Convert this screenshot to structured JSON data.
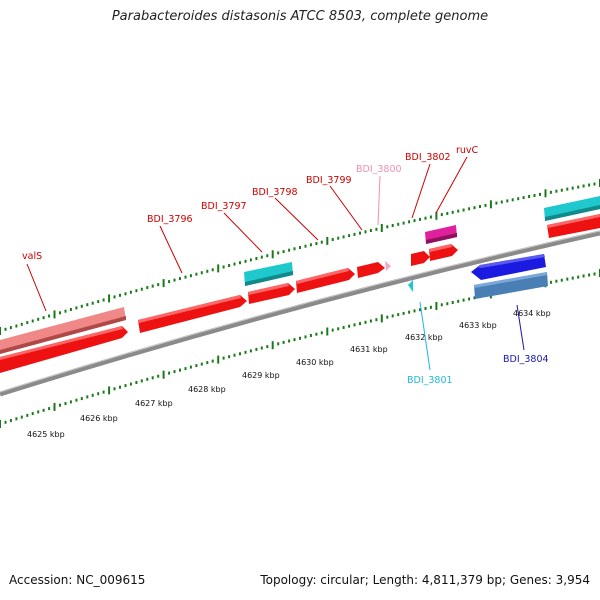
{
  "title": "Parabacteroides distasonis ATCC 8503, complete genome",
  "colors": {
    "forward_cds": "#ee1111",
    "forward_cds_top": "#ff4a4a",
    "trna": "#f08888",
    "misc": "#1ec8cc",
    "reverse_cds": "#1a1ae0",
    "reverse_cds2": "#4a7fb5",
    "magenta": "#e0209a",
    "pink": "#f0a8c8",
    "backbone": "#8a8a8a",
    "tick": "#1a7a1a",
    "label_red": "#cc0000",
    "label_pink": "#f090b0",
    "label_cyan": "#20b8d8",
    "label_blue": "#1818b0"
  },
  "gene_labels": [
    {
      "text": "valS",
      "color_key": "label_red"
    },
    {
      "text": "BDI_3796",
      "color_key": "label_red"
    },
    {
      "text": "BDI_3797",
      "color_key": "label_red"
    },
    {
      "text": "BDI_3798",
      "color_key": "label_red"
    },
    {
      "text": "BDI_3799",
      "color_key": "label_red"
    },
    {
      "text": "BDI_3800",
      "color_key": "label_pink"
    },
    {
      "text": "BDI_3802",
      "color_key": "label_red"
    },
    {
      "text": "ruvC",
      "color_key": "label_red"
    },
    {
      "text": "BDI_3801",
      "color_key": "label_cyan"
    },
    {
      "text": "BDI_3804",
      "color_key": "label_blue"
    }
  ],
  "scale_labels": [
    "4625 kbp",
    "4626 kbp",
    "4627 kbp",
    "4628 kbp",
    "4629 kbp",
    "4630 kbp",
    "4631 kbp",
    "4632 kbp",
    "4633 kbp",
    "4634 kbp"
  ],
  "footer": {
    "accession": "Accession: NC_009615",
    "topology": "Topology: circular;",
    "length": "Length: 4,811,379 bp;",
    "genes": "Genes: 3,954"
  }
}
